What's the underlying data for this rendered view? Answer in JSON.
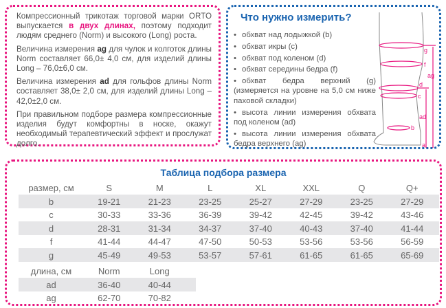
{
  "left_panel": {
    "p1_a": "Компрессионный трикотаж торговой марки ORTO выпускается ",
    "p1_hl": "в двух длинах,",
    "p1_b": " поэтому подходит людям среднего (Norm) и высокого (Long) роста.",
    "p2_a": "Величина измерения ",
    "p2_bold": "ag",
    "p2_b": " для чулок и колготок длины Norm составляет 66,0± 4,0 см, для изделий длины Long – 76,0±6,0 см.",
    "p3_a": "Величина измерения ",
    "p3_bold": "ad",
    "p3_b": " для гольфов длины Norm составляет 38,0± 2,0 см, для изделий длины Long – 42,0±2,0 см.",
    "p4": "При правильном подборе размера компрессионные изделия будут комфортны в носке, окажут необходимый терапевтический эффект и прослужат долго."
  },
  "right_panel": {
    "title": "Что нужно измерить?",
    "items": [
      "обхват над лодыжкой (b)",
      "обхват икры (c)",
      "обхват под коленом (d)",
      "обхват середины бедра (f)",
      "обхват бедра верхний (g) (измеряется на уровне на 5,0 см ниже паховой складки)",
      "высота линии измерения обхвата под коленом (ad)",
      "высота линии измерения обхвата бедра верхнего (ag)"
    ],
    "diagram_labels": {
      "g": "g",
      "f": "f",
      "d": "d",
      "c": "c",
      "b": "b",
      "a": "a",
      "ag": "ag",
      "ad": "ad"
    }
  },
  "size_table": {
    "title": "Таблица подбора размера",
    "header": [
      "размер, см",
      "S",
      "M",
      "L",
      "XL",
      "XXL",
      "Q",
      "Q+"
    ],
    "rows": [
      [
        "b",
        "19-21",
        "21-23",
        "23-25",
        "25-27",
        "27-29",
        "23-25",
        "27-29"
      ],
      [
        "c",
        "30-33",
        "33-36",
        "36-39",
        "39-42",
        "42-45",
        "39-42",
        "43-46"
      ],
      [
        "d",
        "28-31",
        "31-34",
        "34-37",
        "37-40",
        "40-43",
        "37-40",
        "41-44"
      ],
      [
        "f",
        "41-44",
        "44-47",
        "47-50",
        "50-53",
        "53-56",
        "53-56",
        "56-59"
      ],
      [
        "g",
        "45-49",
        "49-53",
        "53-57",
        "57-61",
        "61-65",
        "61-65",
        "65-69"
      ]
    ]
  },
  "length_table": {
    "header": [
      "длина, см",
      "Norm",
      "Long"
    ],
    "rows": [
      [
        "ad",
        "36-40",
        "40-44"
      ],
      [
        "ag",
        "62-70",
        "70-82"
      ]
    ]
  },
  "colors": {
    "pink": "#e8157f",
    "blue": "#1a64b0",
    "stripe": "#e6e6e8"
  }
}
